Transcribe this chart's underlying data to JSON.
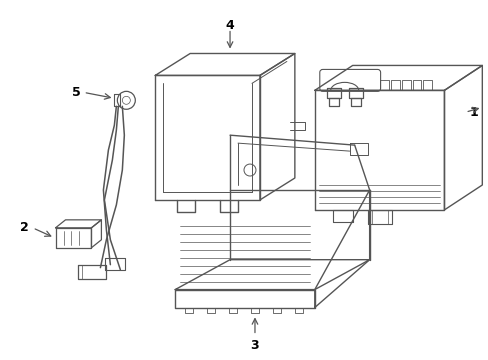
{
  "background_color": "#ffffff",
  "line_color": "#555555",
  "text_color": "#000000",
  "figsize": [
    4.89,
    3.6
  ],
  "dpi": 100
}
